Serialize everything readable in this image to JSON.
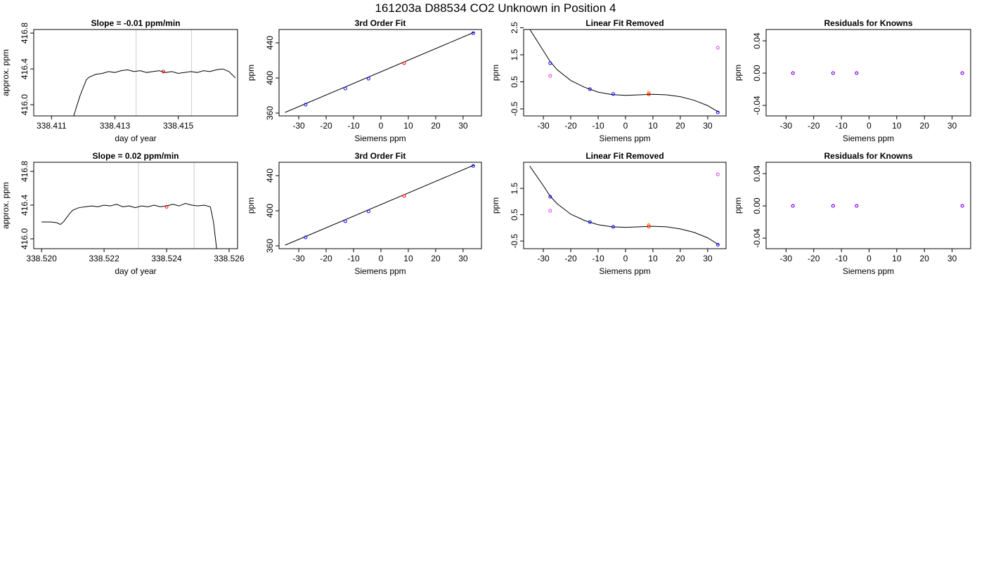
{
  "title": "161203a     D88534   CO2 Unknown in Position  4",
  "chart_data": [
    {
      "type": "line",
      "title": "Slope =  -0.01  ppm/min",
      "x_label": "day of year",
      "y_label": "approx. ppm",
      "xlim": [
        338.41044,
        338.41687
      ],
      "ylim": [
        415.875,
        416.84
      ],
      "xticks": [
        338.411,
        338.413,
        338.415
      ],
      "yticks": [
        {
          "value": 416,
          "label": "416.0"
        },
        416.4,
        416.8
      ],
      "vlines": [
        338.41367,
        338.41542
      ],
      "vline_color": "#cccccc",
      "series": [
        {
          "mode": "line",
          "color": "#000000",
          "x": [
            338.4117,
            338.4119,
            338.4121,
            338.4122,
            338.4124,
            338.4126,
            338.4128,
            338.413,
            338.4132,
            338.4134,
            338.4136,
            338.4138,
            338.414,
            338.4142,
            338.4144,
            338.4146,
            338.4148,
            338.415,
            338.4152,
            338.4154,
            338.4156,
            338.4158,
            338.416,
            338.4162,
            338.4164,
            338.4166,
            338.4168
          ],
          "values": [
            415.875,
            416.1,
            416.28,
            416.31,
            416.34,
            416.35,
            416.37,
            416.36,
            416.38,
            416.39,
            416.37,
            416.38,
            416.36,
            416.37,
            416.38,
            416.36,
            416.37,
            416.35,
            416.36,
            416.37,
            416.36,
            416.38,
            416.37,
            416.39,
            416.4,
            416.37,
            416.3
          ]
        },
        {
          "mode": "points",
          "color": "#ff0000",
          "x": [
            338.41453
          ],
          "values": [
            416.37
          ]
        }
      ]
    },
    {
      "type": "scatter",
      "title": "3rd Order Fit",
      "x_label": "Siemens ppm",
      "y_label": "ppm",
      "xlim": [
        -37.2,
        36.7
      ],
      "ylim": [
        356.8,
        455.2
      ],
      "xticks": [
        -30,
        -20,
        -10,
        0,
        10,
        20,
        30
      ],
      "yticks": [
        360,
        400,
        440
      ],
      "series": [
        {
          "mode": "line",
          "color": "#000000",
          "x": [
            -35,
            34
          ],
          "values": [
            360.8,
            452
          ]
        },
        {
          "mode": "points",
          "color": "#0000ff",
          "x": [
            -27.5,
            -13,
            -4.5,
            33.7
          ],
          "values": [
            369.6,
            388,
            399.2,
            451
          ]
        },
        {
          "mode": "points",
          "color": "#ff0000",
          "x": [
            8.5
          ],
          "values": [
            416.8
          ]
        }
      ]
    },
    {
      "type": "scatter",
      "title": "Linear Fit Removed",
      "x_label": "Siemens ppm",
      "y_label": "ppm",
      "xlim": [
        -37.2,
        36.7
      ],
      "ylim": [
        -0.76,
        2.435
      ],
      "xticks": [
        -30,
        -20,
        -10,
        0,
        10,
        20,
        30
      ],
      "yticks": [
        -0.5,
        0.5,
        1.5,
        2.5
      ],
      "series": [
        {
          "mode": "line",
          "color": "#000000",
          "x": [
            -35,
            -30,
            -27.5,
            -25,
            -20,
            -15,
            -10,
            -5,
            0,
            5,
            10,
            15,
            20,
            25,
            30,
            34
          ],
          "values": [
            2.45,
            1.65,
            1.25,
            0.95,
            0.55,
            0.3,
            0.12,
            0.03,
            0,
            0.02,
            0.04,
            0.02,
            -0.05,
            -0.18,
            -0.38,
            -0.62
          ]
        },
        {
          "mode": "points",
          "color": "#0000ff",
          "x": [
            -27.5,
            -13,
            -4.5,
            33.7
          ],
          "values": [
            1.19,
            0.23,
            0.05,
            -0.63
          ]
        },
        {
          "mode": "points",
          "color": "#e040e0",
          "x": [
            -27.5,
            33.7
          ],
          "values": [
            0.72,
            1.76
          ]
        },
        {
          "mode": "points",
          "color": "#ff9900",
          "x": [
            8.5
          ],
          "values": [
            0.1
          ]
        },
        {
          "mode": "points",
          "color": "#ff0000",
          "x": [
            8.5
          ],
          "values": [
            0.04
          ]
        }
      ]
    },
    {
      "type": "scatter",
      "title": "Residuals for Knowns",
      "x_label": "Siemens ppm",
      "y_label": "ppm",
      "xlim": [
        -37.2,
        36.7
      ],
      "ylim": [
        -0.053,
        0.054
      ],
      "xticks": [
        -30,
        -20,
        -10,
        0,
        10,
        20,
        30
      ],
      "yticks": [
        -0.04,
        {
          "value": 0,
          "label": "0.00"
        },
        0.04
      ],
      "series": [
        {
          "mode": "points",
          "color": "#0000ff",
          "x": [
            -27.5,
            -13,
            -4.5,
            33.7
          ],
          "values": [
            0,
            0,
            0,
            0
          ]
        },
        {
          "mode": "points",
          "color": "#a000ff",
          "x": [
            -27.5,
            -13,
            -4.5,
            33.7
          ],
          "values": [
            0,
            0,
            0,
            0
          ]
        }
      ]
    },
    {
      "type": "line",
      "title": "Slope =  0.02  ppm/min",
      "x_label": "day of year",
      "y_label": "approx. ppm",
      "xlim": [
        338.51975,
        338.52627
      ],
      "ylim": [
        415.883,
        416.908
      ],
      "xticks": [
        {
          "value": 338.52,
          "label": "338.520"
        },
        338.522,
        338.524,
        {
          "value": 338.526,
          "label": "338.526"
        }
      ],
      "yticks": [
        {
          "value": 416,
          "label": "416.0"
        },
        416.4,
        416.8
      ],
      "vlines": [
        338.5231,
        338.52488
      ],
      "vline_color": "#cccccc",
      "series": [
        {
          "mode": "line",
          "color": "#000000",
          "x": [
            338.52,
            338.5203,
            338.5205,
            338.5206,
            338.5207,
            338.5209,
            338.521,
            338.5212,
            338.5214,
            338.5216,
            338.5218,
            338.522,
            338.5222,
            338.5224,
            338.5226,
            338.5228,
            338.523,
            338.5232,
            338.5234,
            338.5236,
            338.5238,
            338.524,
            338.5242,
            338.5244,
            338.5246,
            338.5248,
            338.525,
            338.5252,
            338.5254,
            338.5255,
            338.5256
          ],
          "values": [
            416.2,
            416.2,
            416.19,
            416.17,
            416.2,
            416.3,
            416.34,
            416.37,
            416.38,
            416.39,
            416.38,
            416.4,
            416.39,
            416.41,
            416.38,
            416.39,
            416.37,
            416.39,
            416.38,
            416.4,
            416.38,
            416.39,
            416.41,
            416.39,
            416.42,
            416.4,
            416.39,
            416.4,
            416.38,
            416.2,
            415.883
          ]
        },
        {
          "mode": "points",
          "color": "#ff0000",
          "x": [
            338.524
          ],
          "values": [
            416.38
          ]
        }
      ]
    },
    {
      "type": "scatter",
      "title": "3rd Order Fit",
      "x_label": "Siemens ppm",
      "y_label": "ppm",
      "xlim": [
        -37.2,
        36.7
      ],
      "ylim": [
        356.8,
        455.2
      ],
      "xticks": [
        -30,
        -20,
        -10,
        0,
        10,
        20,
        30
      ],
      "yticks": [
        360,
        400,
        440
      ],
      "series": [
        {
          "mode": "line",
          "color": "#000000",
          "x": [
            -35,
            34
          ],
          "values": [
            360.8,
            452
          ]
        },
        {
          "mode": "points",
          "color": "#0000ff",
          "x": [
            -27.5,
            -13,
            -4.5,
            33.7
          ],
          "values": [
            369.6,
            388,
            399.2,
            451
          ]
        },
        {
          "mode": "points",
          "color": "#ff0000",
          "x": [
            8.5
          ],
          "values": [
            416.8
          ]
        }
      ]
    },
    {
      "type": "scatter",
      "title": "Linear Fit Removed",
      "x_label": "Siemens ppm",
      "y_label": "ppm",
      "xlim": [
        -37.2,
        36.7
      ],
      "ylim": [
        -0.79,
        2.49
      ],
      "xticks": [
        -30,
        -20,
        -10,
        0,
        10,
        20,
        30
      ],
      "yticks": [
        -0.5,
        0.5,
        1.5
      ],
      "series": [
        {
          "mode": "line",
          "color": "#000000",
          "x": [
            -35,
            -30,
            -27.5,
            -25,
            -20,
            -15,
            -10,
            -5,
            0,
            5,
            10,
            15,
            20,
            25,
            30,
            34
          ],
          "values": [
            2.35,
            1.6,
            1.2,
            0.92,
            0.52,
            0.28,
            0.12,
            0.04,
            0.02,
            0.04,
            0.06,
            0.04,
            -0.04,
            -0.17,
            -0.38,
            -0.64
          ]
        },
        {
          "mode": "points",
          "color": "#0000ff",
          "x": [
            -27.5,
            -13,
            -4.5,
            33.7
          ],
          "values": [
            1.18,
            0.22,
            0.04,
            -0.64
          ]
        },
        {
          "mode": "points",
          "color": "#e040e0",
          "x": [
            -27.5,
            33.7
          ],
          "values": [
            0.65,
            2.03
          ]
        },
        {
          "mode": "points",
          "color": "#ff9900",
          "x": [
            8.5
          ],
          "values": [
            0.11
          ]
        },
        {
          "mode": "points",
          "color": "#ff0000",
          "x": [
            8.5
          ],
          "values": [
            0.05
          ]
        }
      ]
    },
    {
      "type": "scatter",
      "title": "Residuals for Knowns",
      "x_label": "Siemens ppm",
      "y_label": "ppm",
      "xlim": [
        -37.2,
        36.7
      ],
      "ylim": [
        -0.053,
        0.054
      ],
      "xticks": [
        -30,
        -20,
        -10,
        0,
        10,
        20,
        30
      ],
      "yticks": [
        -0.04,
        {
          "value": 0,
          "label": "0.00"
        },
        0.04
      ],
      "series": [
        {
          "mode": "points",
          "color": "#0000ff",
          "x": [
            -27.5,
            -13,
            -4.5,
            33.7
          ],
          "values": [
            0,
            0,
            0,
            0
          ]
        },
        {
          "mode": "points",
          "color": "#a000ff",
          "x": [
            -27.5,
            -13,
            -4.5,
            33.7
          ],
          "values": [
            0,
            0,
            0,
            0
          ]
        }
      ]
    }
  ]
}
